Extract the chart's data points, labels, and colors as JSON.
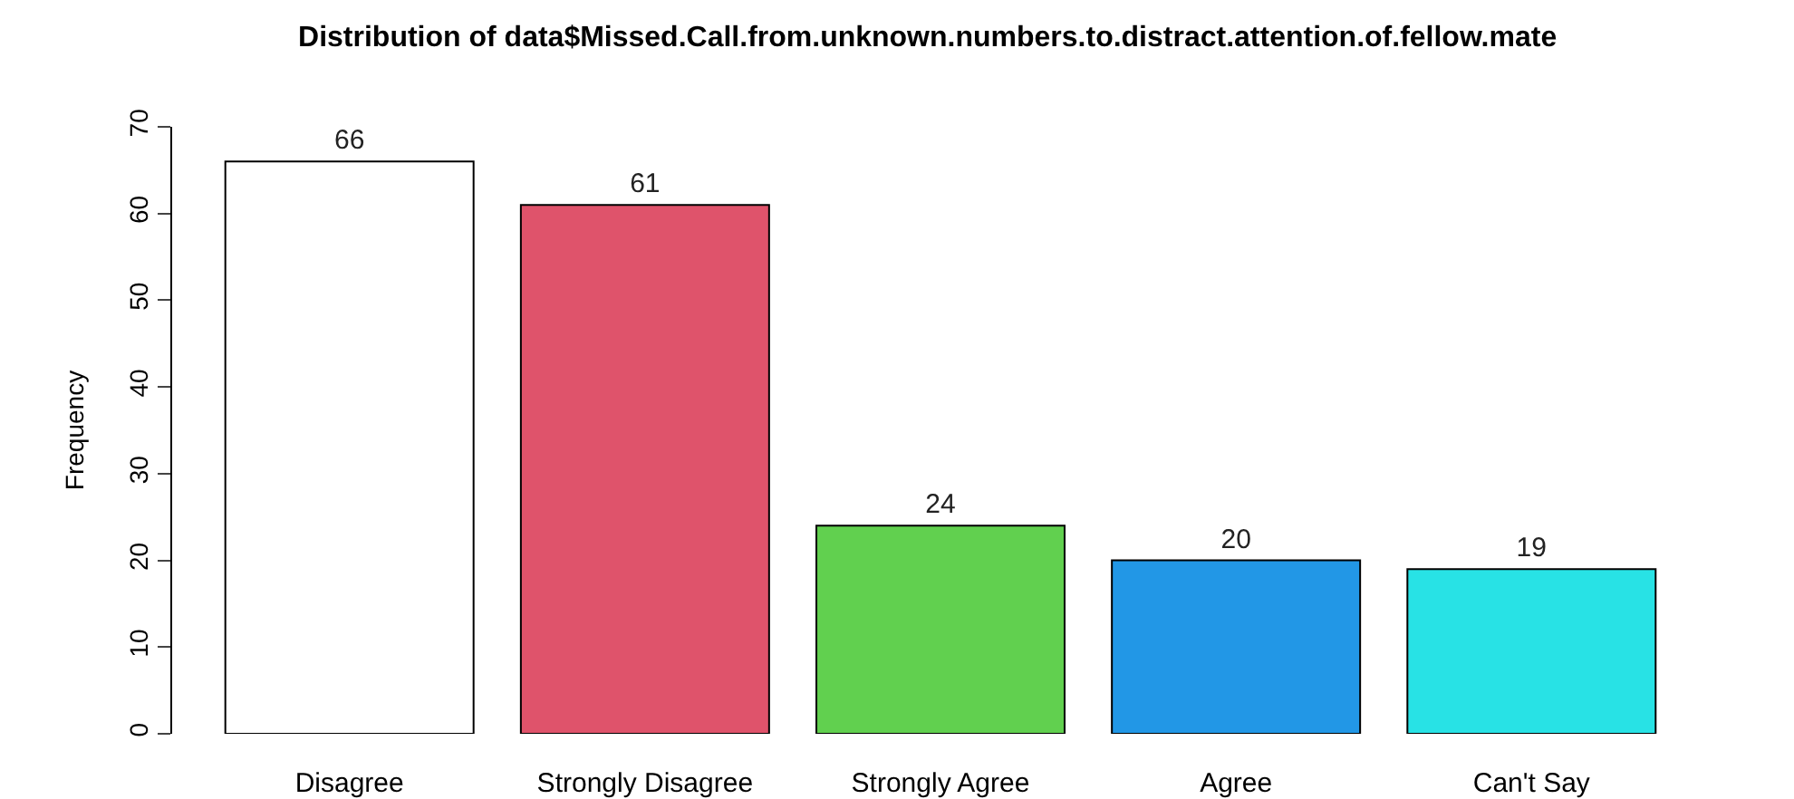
{
  "chart_data": {
    "type": "bar",
    "title": "Distribution of data$Missed.Call.from.unknown.numbers.to.distract.attention.of.fellow.mate",
    "ylabel": "Frequency",
    "categories": [
      "Disagree",
      "Strongly Disagree",
      "Strongly Agree",
      "Agree",
      "Can't Say"
    ],
    "values": [
      66,
      61,
      24,
      20,
      19
    ],
    "colors": [
      "#ffffff",
      "#df536b",
      "#61d04f",
      "#2297e6",
      "#28e2e5"
    ],
    "ylim": [
      0,
      70
    ],
    "yticks": [
      0,
      10,
      20,
      30,
      40,
      50,
      60,
      70
    ],
    "data_labels": true
  }
}
